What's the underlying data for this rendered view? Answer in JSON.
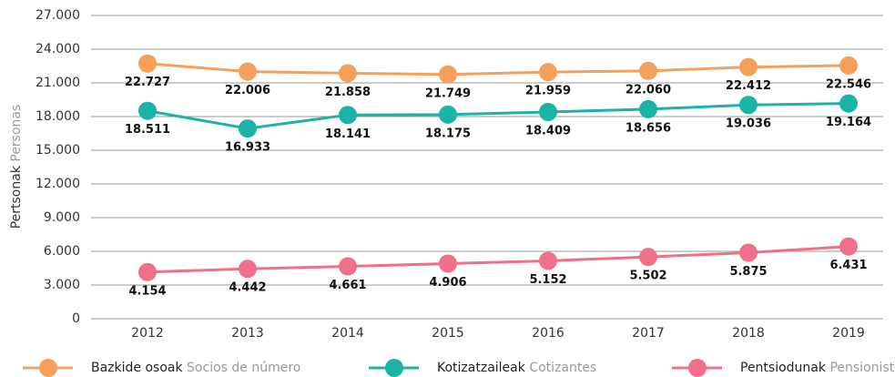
{
  "chart_data": {
    "type": "line",
    "ylabel": "Pertsonak",
    "ylabel_es": "Personas",
    "categories": [
      "2012",
      "2013",
      "2014",
      "2015",
      "2016",
      "2017",
      "2018",
      "2019"
    ],
    "series": [
      {
        "name": "Bazkide osoak",
        "name_es": "Socios de número",
        "color": "#f5a05a",
        "values": [
          22727,
          22006,
          21858,
          21749,
          21959,
          22060,
          22412,
          22546
        ],
        "value_labels": [
          "22.727",
          "22.006",
          "21.858",
          "21.749",
          "21.959",
          "22.060",
          "22.412",
          "22.546"
        ]
      },
      {
        "name": "Kotizatzaileak",
        "name_es": "Cotizantes",
        "color": "#1ab3a6",
        "values": [
          18511,
          16933,
          18141,
          18175,
          18409,
          18656,
          19036,
          19164
        ],
        "value_labels": [
          "18.511",
          "16.933",
          "18.141",
          "18.175",
          "18.409",
          "18.656",
          "19.036",
          "19.164"
        ]
      },
      {
        "name": "Pentsiodunak",
        "name_es": "Pensionistas",
        "color": "#ef7088",
        "values": [
          4154,
          4442,
          4661,
          4906,
          5152,
          5502,
          5875,
          6431
        ],
        "value_labels": [
          "4.154",
          "4.442",
          "4.661",
          "4.906",
          "5.152",
          "5.502",
          "5.875",
          "6.431"
        ]
      }
    ],
    "ylim": [
      0,
      27000
    ],
    "yticks": [
      0,
      {
        "value": 3000,
        "label": "3.000"
      },
      {
        "value": 6000,
        "label": "6.000"
      },
      {
        "value": 9000,
        "label": "9.000"
      },
      {
        "value": 12000,
        "label": "12.000"
      },
      {
        "value": 15000,
        "label": "15.000"
      },
      {
        "value": 18000,
        "label": "18.000"
      },
      {
        "value": 21000,
        "label": "21.000"
      },
      {
        "value": 24000,
        "label": "24.000"
      },
      {
        "value": 27000,
        "label": "27.000"
      }
    ],
    "grid": true
  }
}
